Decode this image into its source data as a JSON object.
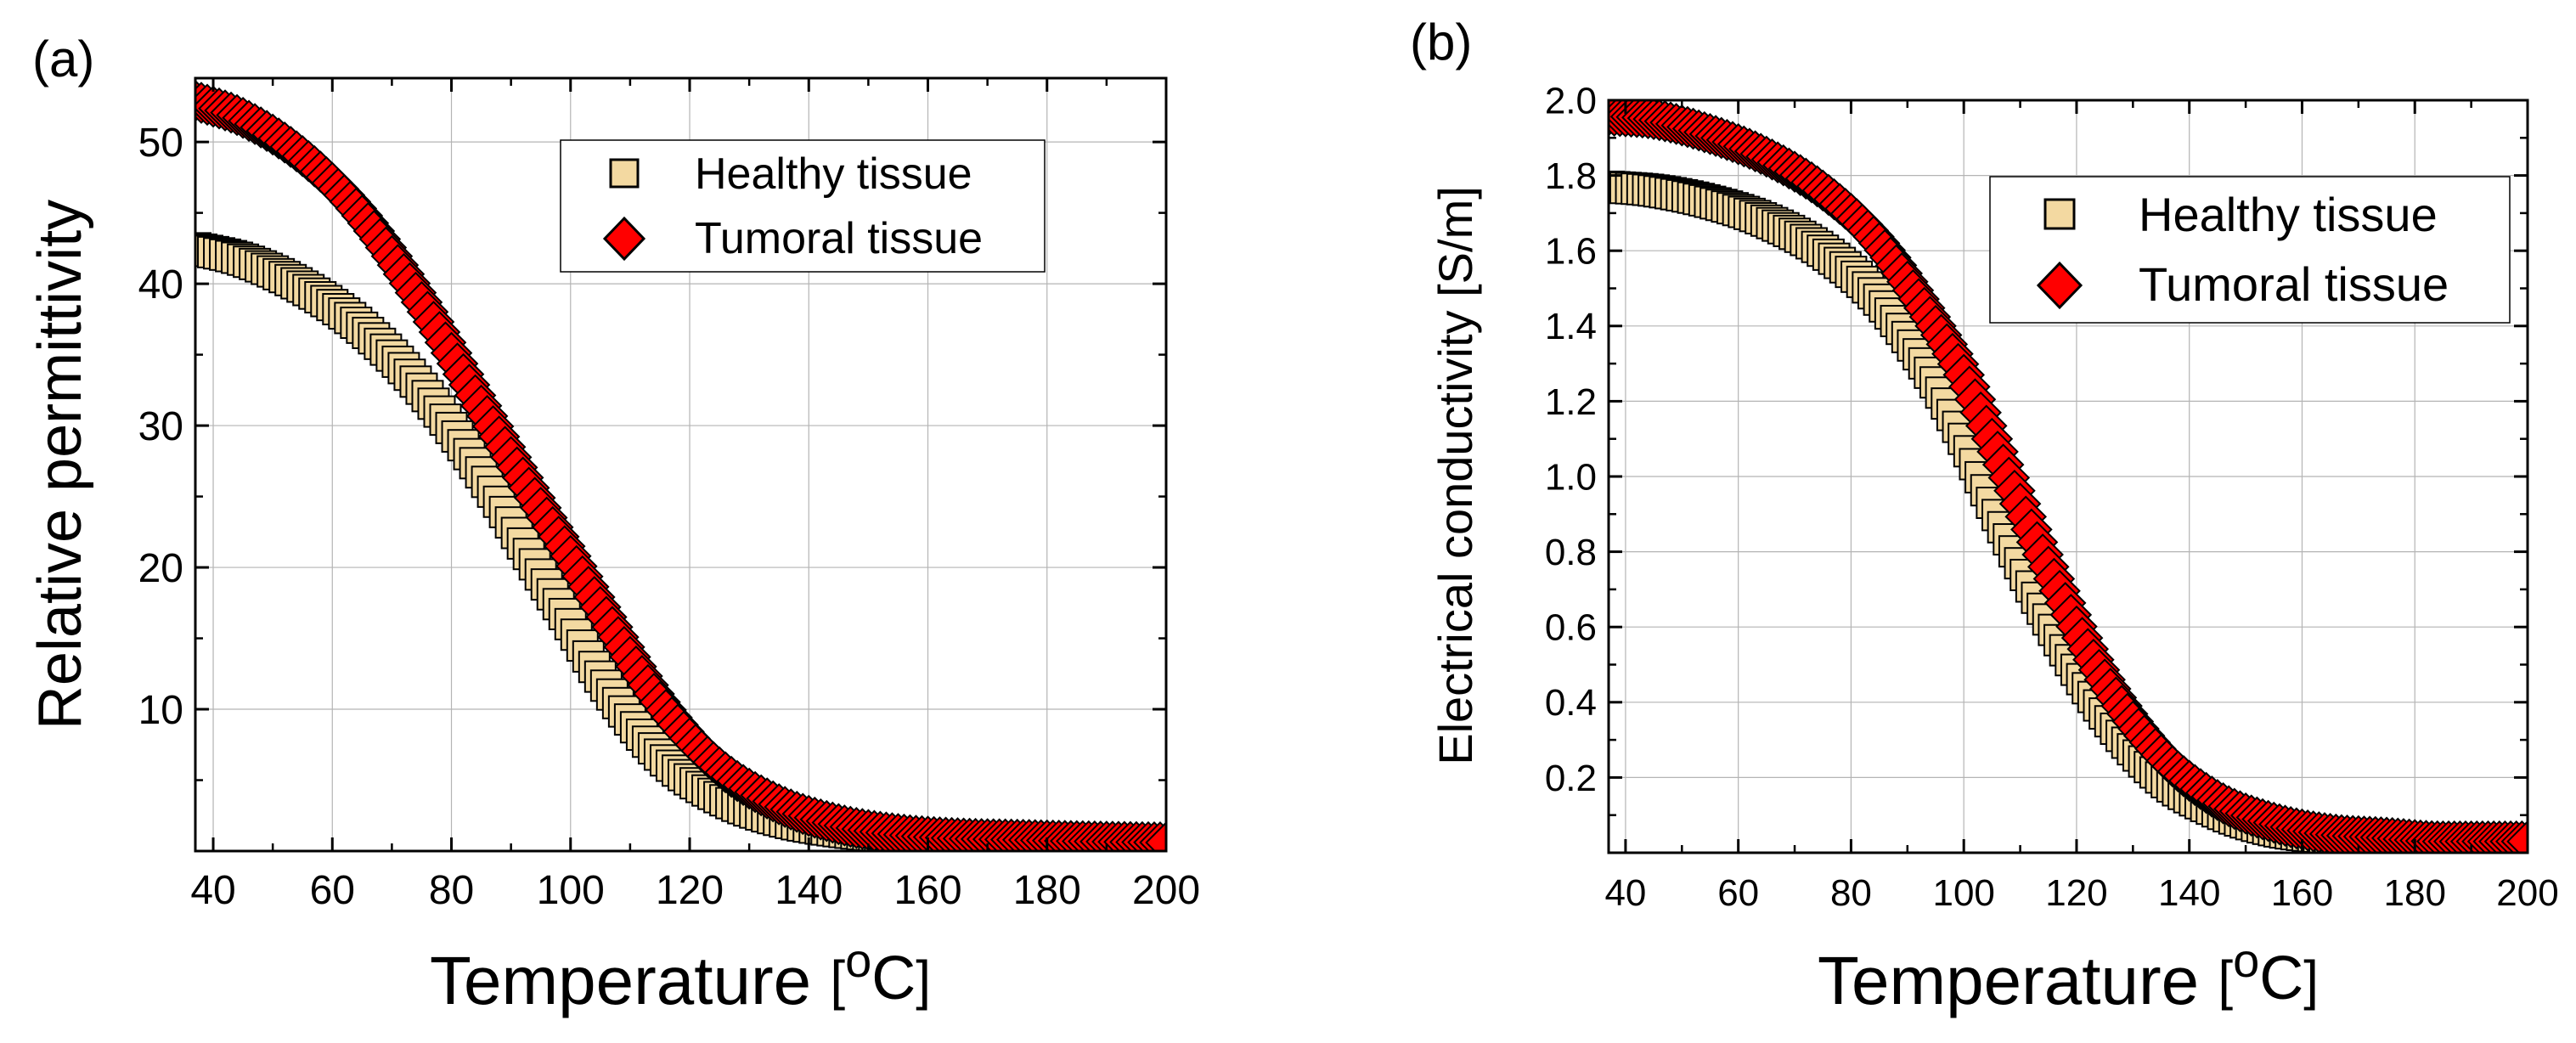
{
  "chart_data": [
    {
      "type": "scatter",
      "panel_label": "(a)",
      "title": "",
      "xlabel": "Temperature",
      "xlabel_unit_open": "[",
      "xlabel_unit_sup": "o",
      "xlabel_unit_main": "C",
      "xlabel_unit_close": "]",
      "ylabel": "Relative permittivity",
      "xlim": [
        37,
        200
      ],
      "ylim": [
        0,
        54.5
      ],
      "xticks": [
        "40",
        "60",
        "80",
        "100",
        "120",
        "140",
        "160",
        "180",
        "200"
      ],
      "xtick_values": [
        40,
        60,
        80,
        100,
        120,
        140,
        160,
        180,
        200
      ],
      "yticks": [
        "10",
        "20",
        "30",
        "40",
        "50"
      ],
      "ytick_values": [
        10,
        20,
        30,
        40,
        50
      ],
      "grid": true,
      "legend_position": "top-right",
      "series": [
        {
          "name": "Healthy tissue",
          "marker": "square",
          "color": "#f3d9a1",
          "edge": "#000000",
          "x": [
            37,
            45,
            55,
            65,
            75,
            85,
            95,
            100,
            105,
            115,
            125,
            135,
            145,
            155,
            165,
            175,
            185,
            200
          ],
          "y": [
            42.5,
            41.7,
            39.8,
            36.9,
            32.6,
            26.7,
            19.5,
            16.0,
            12.3,
            6.8,
            3.8,
            2.2,
            1.4,
            1.0,
            0.8,
            0.7,
            0.6,
            0.5
          ]
        },
        {
          "name": "Tumoral tissue",
          "marker": "diamond",
          "color": "#ff0000",
          "edge": "#000000",
          "x": [
            37,
            45,
            55,
            65,
            75,
            85,
            95,
            100,
            105,
            115,
            125,
            135,
            145,
            155,
            165,
            175,
            185,
            200
          ],
          "y": [
            52.9,
            51.7,
            49.0,
            44.8,
            38.7,
            31.4,
            24.2,
            20.8,
            17.2,
            10.5,
            5.9,
            3.3,
            1.9,
            1.2,
            0.9,
            0.8,
            0.7,
            0.6
          ]
        }
      ]
    },
    {
      "type": "scatter",
      "panel_label": "(b)",
      "title": "",
      "xlabel": "Temperature",
      "xlabel_unit_open": "[",
      "xlabel_unit_sup": "o",
      "xlabel_unit_main": "C",
      "xlabel_unit_close": "]",
      "ylabel": "Electrical conductivity [S/m]",
      "xlim": [
        37,
        200
      ],
      "ylim": [
        0,
        2.0
      ],
      "xticks": [
        "40",
        "60",
        "80",
        "100",
        "120",
        "140",
        "160",
        "180",
        "200"
      ],
      "xtick_values": [
        40,
        60,
        80,
        100,
        120,
        140,
        160,
        180,
        200
      ],
      "yticks": [
        "0.2",
        "0.4",
        "0.6",
        "0.8",
        "1.0",
        "1.2",
        "1.4",
        "1.6",
        "1.8",
        "2.0"
      ],
      "ytick_values": [
        0.2,
        0.4,
        0.6,
        0.8,
        1.0,
        1.2,
        1.4,
        1.6,
        1.8,
        2.0
      ],
      "grid": true,
      "legend_position": "top-right",
      "series": [
        {
          "name": "Healthy tissue",
          "marker": "square",
          "color": "#f3d9a1",
          "edge": "#000000",
          "x": [
            37,
            45,
            55,
            65,
            75,
            85,
            95,
            100,
            105,
            115,
            125,
            135,
            145,
            155,
            165,
            175,
            185,
            200
          ],
          "y": [
            1.77,
            1.76,
            1.73,
            1.68,
            1.6,
            1.47,
            1.25,
            1.1,
            0.93,
            0.62,
            0.37,
            0.2,
            0.11,
            0.06,
            0.04,
            0.03,
            0.03,
            0.02
          ]
        },
        {
          "name": "Tumoral tissue",
          "marker": "diamond",
          "color": "#ff0000",
          "edge": "#000000",
          "x": [
            37,
            45,
            55,
            65,
            75,
            85,
            95,
            100,
            105,
            115,
            125,
            135,
            145,
            155,
            165,
            175,
            185,
            200
          ],
          "y": [
            1.96,
            1.95,
            1.91,
            1.85,
            1.76,
            1.62,
            1.4,
            1.27,
            1.1,
            0.76,
            0.46,
            0.26,
            0.14,
            0.08,
            0.05,
            0.04,
            0.03,
            0.03
          ]
        }
      ]
    }
  ]
}
